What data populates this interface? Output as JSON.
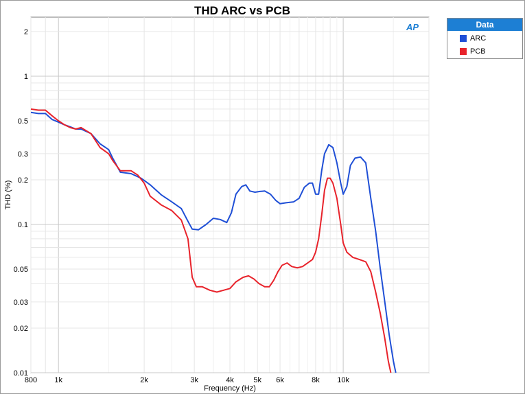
{
  "chart_data": {
    "type": "line",
    "title": "THD ARC vs PCB",
    "xlabel": "Frequency (Hz)",
    "ylabel": "THD (%)",
    "xscale": "log",
    "yscale": "log",
    "xlim": [
      800,
      20000
    ],
    "ylim": [
      0.01,
      2.5
    ],
    "grid": true,
    "legend_title": "Data",
    "legend_placement": "outside-right-top",
    "x_ticks": [
      {
        "v": 800,
        "label": "800"
      },
      {
        "v": 1000,
        "label": "1k"
      },
      {
        "v": 2000,
        "label": "2k"
      },
      {
        "v": 3000,
        "label": "3k"
      },
      {
        "v": 4000,
        "label": "4k"
      },
      {
        "v": 5000,
        "label": "5k"
      },
      {
        "v": 6000,
        "label": "6k"
      },
      {
        "v": 8000,
        "label": "8k"
      },
      {
        "v": 10000,
        "label": "10k"
      }
    ],
    "y_ticks": [
      {
        "v": 0.01,
        "label": "0.01"
      },
      {
        "v": 0.02,
        "label": "0.02"
      },
      {
        "v": 0.03,
        "label": "0.03"
      },
      {
        "v": 0.05,
        "label": "0.05"
      },
      {
        "v": 0.1,
        "label": "0.1"
      },
      {
        "v": 0.2,
        "label": "0.2"
      },
      {
        "v": 0.3,
        "label": "0.3"
      },
      {
        "v": 0.5,
        "label": "0.5"
      },
      {
        "v": 1,
        "label": "1"
      },
      {
        "v": 2,
        "label": "2"
      }
    ],
    "series": [
      {
        "name": "ARC",
        "color": "#1f4fd6",
        "points": [
          [
            800,
            0.57
          ],
          [
            850,
            0.56
          ],
          [
            900,
            0.56
          ],
          [
            950,
            0.51
          ],
          [
            1000,
            0.49
          ],
          [
            1050,
            0.47
          ],
          [
            1100,
            0.455
          ],
          [
            1150,
            0.44
          ],
          [
            1200,
            0.44
          ],
          [
            1300,
            0.41
          ],
          [
            1400,
            0.35
          ],
          [
            1500,
            0.32
          ],
          [
            1550,
            0.28
          ],
          [
            1650,
            0.225
          ],
          [
            1800,
            0.22
          ],
          [
            1950,
            0.205
          ],
          [
            2100,
            0.185
          ],
          [
            2300,
            0.158
          ],
          [
            2500,
            0.142
          ],
          [
            2700,
            0.128
          ],
          [
            2850,
            0.105
          ],
          [
            2950,
            0.093
          ],
          [
            3100,
            0.092
          ],
          [
            3300,
            0.1
          ],
          [
            3500,
            0.11
          ],
          [
            3700,
            0.108
          ],
          [
            3900,
            0.103
          ],
          [
            4050,
            0.12
          ],
          [
            4200,
            0.16
          ],
          [
            4400,
            0.18
          ],
          [
            4550,
            0.185
          ],
          [
            4700,
            0.168
          ],
          [
            4900,
            0.165
          ],
          [
            5100,
            0.167
          ],
          [
            5300,
            0.168
          ],
          [
            5550,
            0.16
          ],
          [
            5800,
            0.145
          ],
          [
            6000,
            0.138
          ],
          [
            6300,
            0.14
          ],
          [
            6700,
            0.142
          ],
          [
            7000,
            0.15
          ],
          [
            7300,
            0.178
          ],
          [
            7600,
            0.19
          ],
          [
            7800,
            0.19
          ],
          [
            8000,
            0.16
          ],
          [
            8200,
            0.16
          ],
          [
            8400,
            0.23
          ],
          [
            8600,
            0.3
          ],
          [
            8900,
            0.345
          ],
          [
            9200,
            0.33
          ],
          [
            9500,
            0.26
          ],
          [
            9800,
            0.19
          ],
          [
            10000,
            0.16
          ],
          [
            10300,
            0.18
          ],
          [
            10600,
            0.25
          ],
          [
            11000,
            0.28
          ],
          [
            11500,
            0.285
          ],
          [
            12000,
            0.26
          ],
          [
            12500,
            0.15
          ],
          [
            13000,
            0.09
          ],
          [
            13500,
            0.05
          ],
          [
            14000,
            0.03
          ],
          [
            14500,
            0.018
          ],
          [
            15000,
            0.012
          ],
          [
            15300,
            0.01
          ]
        ]
      },
      {
        "name": "PCB",
        "color": "#e8232b",
        "points": [
          [
            800,
            0.6
          ],
          [
            850,
            0.59
          ],
          [
            900,
            0.59
          ],
          [
            950,
            0.54
          ],
          [
            1000,
            0.5
          ],
          [
            1050,
            0.47
          ],
          [
            1100,
            0.45
          ],
          [
            1150,
            0.44
          ],
          [
            1200,
            0.45
          ],
          [
            1300,
            0.41
          ],
          [
            1400,
            0.33
          ],
          [
            1500,
            0.3
          ],
          [
            1550,
            0.27
          ],
          [
            1650,
            0.23
          ],
          [
            1800,
            0.23
          ],
          [
            1900,
            0.215
          ],
          [
            2000,
            0.19
          ],
          [
            2100,
            0.155
          ],
          [
            2300,
            0.135
          ],
          [
            2500,
            0.124
          ],
          [
            2700,
            0.107
          ],
          [
            2850,
            0.08
          ],
          [
            2950,
            0.044
          ],
          [
            3050,
            0.038
          ],
          [
            3200,
            0.038
          ],
          [
            3400,
            0.036
          ],
          [
            3600,
            0.035
          ],
          [
            3800,
            0.036
          ],
          [
            4000,
            0.037
          ],
          [
            4200,
            0.041
          ],
          [
            4450,
            0.044
          ],
          [
            4650,
            0.045
          ],
          [
            4850,
            0.043
          ],
          [
            5050,
            0.04
          ],
          [
            5300,
            0.038
          ],
          [
            5500,
            0.038
          ],
          [
            5700,
            0.042
          ],
          [
            5900,
            0.048
          ],
          [
            6100,
            0.053
          ],
          [
            6350,
            0.055
          ],
          [
            6600,
            0.052
          ],
          [
            6900,
            0.051
          ],
          [
            7200,
            0.052
          ],
          [
            7500,
            0.055
          ],
          [
            7800,
            0.058
          ],
          [
            8000,
            0.065
          ],
          [
            8200,
            0.08
          ],
          [
            8400,
            0.115
          ],
          [
            8600,
            0.17
          ],
          [
            8800,
            0.205
          ],
          [
            9000,
            0.205
          ],
          [
            9200,
            0.19
          ],
          [
            9500,
            0.15
          ],
          [
            9800,
            0.1
          ],
          [
            10000,
            0.075
          ],
          [
            10300,
            0.065
          ],
          [
            10800,
            0.06
          ],
          [
            11400,
            0.058
          ],
          [
            12000,
            0.056
          ],
          [
            12500,
            0.048
          ],
          [
            13000,
            0.035
          ],
          [
            13500,
            0.025
          ],
          [
            14000,
            0.017
          ],
          [
            14400,
            0.012
          ],
          [
            14700,
            0.01
          ]
        ]
      }
    ]
  },
  "logo_text": "AP"
}
